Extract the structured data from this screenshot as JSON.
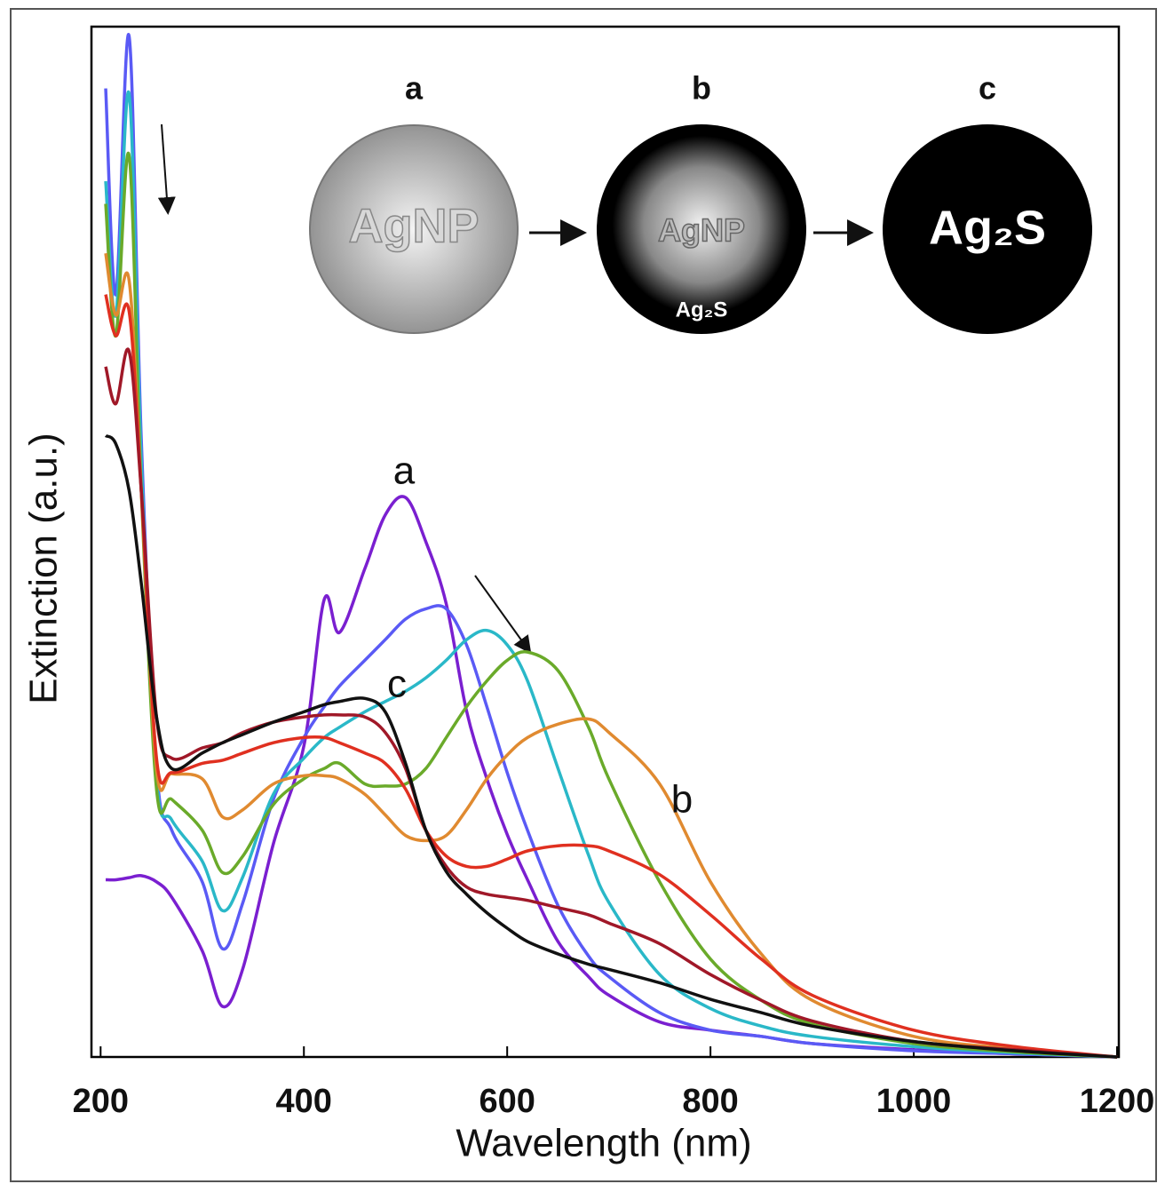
{
  "chart_data": {
    "type": "line",
    "x_label": "Wavelength (nm)",
    "y_label": "Extinction (a.u.)",
    "xlim": [
      191,
      1200
    ],
    "ylim": [
      0,
      100
    ],
    "xticks": [
      200,
      400,
      600,
      800,
      1000,
      1200
    ],
    "x": [
      205,
      215,
      228,
      240,
      255,
      270,
      300,
      320,
      340,
      370,
      400,
      420,
      435,
      460,
      480,
      500,
      520,
      540,
      560,
      580,
      600,
      620,
      650,
      680,
      700,
      750,
      800,
      850,
      900,
      1000,
      1100,
      1200
    ],
    "series": [
      {
        "color": "#7a1fd0",
        "values": [
          17.2,
          17.2,
          17.4,
          17.6,
          17.0,
          15.5,
          10.3,
          4.9,
          8.6,
          20.7,
          30.2,
          44.4,
          41.2,
          47.4,
          52.6,
          54.3,
          50,
          44,
          33.6,
          27,
          21.6,
          17.2,
          11.2,
          7.8,
          6,
          3.4,
          2.6,
          2,
          1.3,
          0.7,
          0.3,
          0
        ]
      },
      {
        "color": "#5a5af5",
        "values": [
          94,
          74,
          99.1,
          60,
          28,
          22,
          17,
          10.5,
          15,
          25,
          31,
          34,
          36,
          38.5,
          40.5,
          42.5,
          43.5,
          43.5,
          40,
          34,
          27.6,
          22,
          14.7,
          9.8,
          7.8,
          4.3,
          2.6,
          2,
          1.3,
          0.6,
          0.3,
          0
        ]
      },
      {
        "color": "#2ab8c8",
        "values": [
          85,
          72,
          93.5,
          58,
          27,
          23,
          19,
          14.2,
          17.5,
          25.5,
          29,
          31,
          32,
          33.5,
          34.5,
          35.5,
          36.8,
          38.5,
          40.5,
          41.4,
          40,
          36.5,
          28,
          19.6,
          15,
          8,
          4.7,
          3,
          2,
          1,
          0.4,
          0
        ]
      },
      {
        "color": "#6aaa2a",
        "values": [
          82.8,
          70,
          87.5,
          55,
          26,
          25,
          22,
          17.9,
          19.5,
          24.5,
          27,
          28,
          28.5,
          26.5,
          26.3,
          26.5,
          28,
          31,
          34,
          36.5,
          38.5,
          39.3,
          37.5,
          32,
          27,
          17,
          9.5,
          5.5,
          3.2,
          1.3,
          0.5,
          0
        ]
      },
      {
        "color": "#e08a30",
        "values": [
          78,
          72,
          75.4,
          55,
          28,
          27.5,
          27,
          23.3,
          24,
          26.5,
          27.3,
          27.3,
          27,
          25.5,
          23.5,
          21.5,
          21,
          21.5,
          24,
          27,
          29.3,
          31,
          32.3,
          32.8,
          31.5,
          26.5,
          17,
          10,
          5.5,
          2,
          0.8,
          0
        ]
      },
      {
        "color": "#e03020",
        "values": [
          74,
          70,
          72.4,
          55,
          29,
          27.6,
          28.5,
          28.8,
          29.5,
          30.5,
          31,
          31,
          30.5,
          29.5,
          28.5,
          26,
          22,
          19.5,
          18.5,
          18.5,
          19.2,
          20,
          20.5,
          20.5,
          20,
          17.7,
          13.8,
          9.5,
          6,
          2.6,
          1,
          0
        ]
      },
      {
        "color": "#a01828",
        "values": [
          67,
          63.4,
          68.5,
          55,
          33,
          29,
          30,
          30.5,
          31.5,
          32.5,
          33,
          33.2,
          33.2,
          33,
          31.5,
          28,
          22,
          18.5,
          16.5,
          15.8,
          15.5,
          15.2,
          14.5,
          13.8,
          13,
          11,
          8,
          5.5,
          3.5,
          1.5,
          0.7,
          0
        ]
      },
      {
        "color": "#111111",
        "values": [
          60.3,
          59.5,
          55,
          46,
          33,
          28,
          29.5,
          30.5,
          31.3,
          32.5,
          33.5,
          34.2,
          34.5,
          34.8,
          33.5,
          28.5,
          22,
          18,
          15.8,
          14,
          12.5,
          11.2,
          10,
          9,
          8.5,
          7.2,
          5.6,
          4.3,
          3,
          1.5,
          0.6,
          0
        ]
      }
    ],
    "curve_labels": [
      "a",
      "c",
      "b"
    ],
    "inset_labels": [
      "a",
      "b",
      "c"
    ],
    "inset_texts": [
      "AgNP",
      "AgNP",
      "Ag₂S",
      "Ag₂S"
    ]
  }
}
